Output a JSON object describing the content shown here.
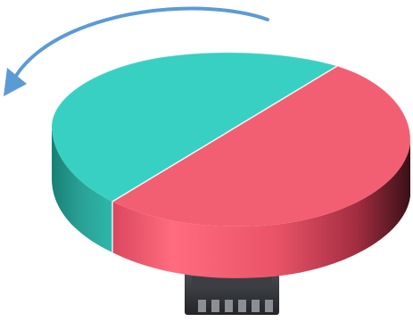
{
  "diagram": {
    "colors": {
      "arrow": "#5b9bd5",
      "teal_top": "#38d0c2",
      "teal_side_light": "#2fb7aa",
      "teal_side_dark": "#177f76",
      "red_top": "#f25f73",
      "red_side_light": "#ff6b7f",
      "red_side_mid": "#d9485d",
      "red_side_dark": "#3a1018",
      "chip_body": "#2e2f34",
      "chip_pin": "#8b8e94",
      "edge_highlight": "#ffffff"
    },
    "icons": {
      "rotation_arrow": "curved-arrow-counterclockwise-icon",
      "sensor_chip": "chip-icon"
    }
  }
}
